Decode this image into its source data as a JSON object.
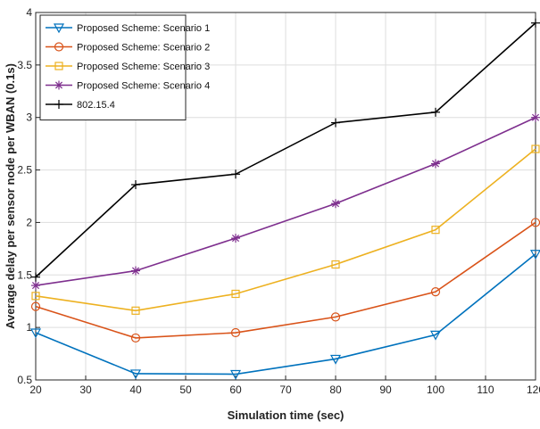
{
  "chart_data": {
    "type": "line",
    "xlabel": "Simulation time (sec)",
    "ylabel": "Average delay per sensor node per WBAN (0.1s)",
    "xlim": [
      20,
      120
    ],
    "ylim": [
      0.5,
      4
    ],
    "xticks": [
      20,
      30,
      40,
      50,
      60,
      70,
      80,
      90,
      100,
      110,
      120
    ],
    "yticks": [
      0.5,
      1,
      1.5,
      2,
      2.5,
      3,
      3.5,
      4
    ],
    "grid": true,
    "legend_position": "top-left",
    "x": [
      20,
      40,
      60,
      80,
      100,
      120
    ],
    "series": [
      {
        "name": "Proposed Scheme: Scenario 1",
        "color": "#0072BD",
        "marker": "triangle-down",
        "values": [
          0.95,
          0.56,
          0.555,
          0.7,
          0.93,
          1.7
        ]
      },
      {
        "name": "Proposed Scheme: Scenario 2",
        "color": "#D95319",
        "marker": "circle",
        "values": [
          1.2,
          0.9,
          0.95,
          1.1,
          1.34,
          2.0
        ]
      },
      {
        "name": "Proposed Scheme: Scenario 3",
        "color": "#EDB120",
        "marker": "square",
        "values": [
          1.3,
          1.16,
          1.32,
          1.6,
          1.93,
          2.7
        ]
      },
      {
        "name": "Proposed Scheme: Scenario 4",
        "color": "#7E2F8E",
        "marker": "asterisk",
        "values": [
          1.4,
          1.54,
          1.85,
          2.18,
          2.56,
          3.0
        ]
      },
      {
        "name": "802.15.4",
        "color": "#000000",
        "marker": "plus",
        "values": [
          1.48,
          2.36,
          2.46,
          2.95,
          3.05,
          3.9
        ]
      }
    ]
  }
}
